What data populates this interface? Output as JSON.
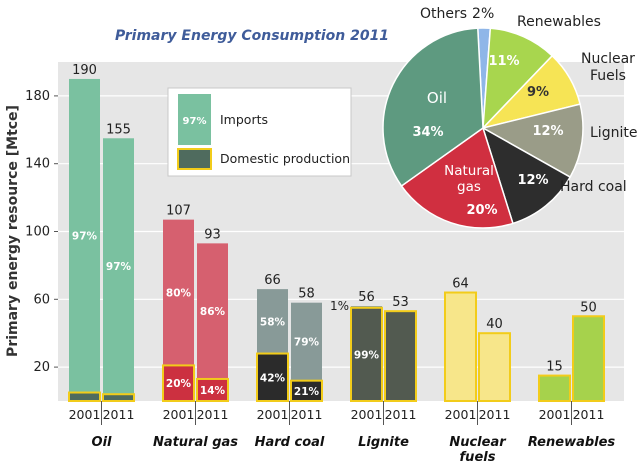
{
  "title": "Primary Energy Consumption 2011",
  "colors": {
    "title": "#3f5c9a",
    "plot_bg": "#e6e6e6",
    "grid": "#ffffff",
    "highlight_stroke": "#f2cc1a"
  },
  "chart_data": [
    {
      "type": "bar",
      "ylabel": "Primary energy resource [Mtce]",
      "ylim": [
        0,
        200
      ],
      "yticks": [
        20,
        60,
        100,
        140,
        180
      ],
      "grid": true,
      "legend_position": "top-center",
      "legend": [
        {
          "label": "Imports",
          "sample_label": "97%",
          "color": "#7ac1a0"
        },
        {
          "label": "Domestic production",
          "color": "#4f6b5e"
        }
      ],
      "groups": [
        {
          "name": "Oil",
          "import_color": "#7ac1a0",
          "domestic_color": "#4f6b5e",
          "bars": [
            {
              "year": "2001",
              "total": 190,
              "total_label": "190",
              "domestic": 5,
              "import_label": "97%"
            },
            {
              "year": "2011",
              "total": 155,
              "total_label": "155",
              "domestic": 4,
              "import_label": "97%"
            }
          ]
        },
        {
          "name": "Natural gas",
          "import_color": "#d6606f",
          "domestic_color": "#cc3040",
          "bars": [
            {
              "year": "2001",
              "total": 107,
              "total_label": "107",
              "domestic": 21,
              "import_label": "80%",
              "domestic_label": "20%"
            },
            {
              "year": "2011",
              "total": 93,
              "total_label": "93",
              "domestic": 13,
              "import_label": "86%",
              "domestic_label": "14%"
            }
          ]
        },
        {
          "name": "Hard coal",
          "import_color": "#889a98",
          "domestic_color": "#2b2b2b",
          "bars": [
            {
              "year": "2001",
              "total": 66,
              "total_label": "66",
              "domestic": 28,
              "import_label": "58%",
              "domestic_label": "42%"
            },
            {
              "year": "2011",
              "total": 58,
              "total_label": "58",
              "domestic": 12,
              "import_label": "79%",
              "domestic_label": "21%"
            }
          ]
        },
        {
          "name": "Lignite",
          "import_color": "#889a98",
          "domestic_color": "#525a50",
          "bars": [
            {
              "year": "2001",
              "total": 56,
              "total_label": "56",
              "domestic": 55,
              "domestic_label": "99%",
              "side_label": "1%"
            },
            {
              "year": "2011",
              "total": 53,
              "total_label": "53",
              "domestic": 53
            }
          ]
        },
        {
          "name": "Nuclear fuels",
          "import_color": "#f7e68a",
          "domestic_color": "#f7e68a",
          "bars": [
            {
              "year": "2001",
              "total": 64,
              "total_label": "64",
              "domestic": 64
            },
            {
              "year": "2011",
              "total": 40,
              "total_label": "40",
              "domestic": 40
            }
          ]
        },
        {
          "name": "Renewables",
          "import_color": "#a6d24c",
          "domestic_color": "#a6d24c",
          "bars": [
            {
              "year": "2001",
              "total": 15,
              "total_label": "15",
              "domestic": 15
            },
            {
              "year": "2011",
              "total": 50,
              "total_label": "50",
              "domestic": 50
            }
          ]
        }
      ]
    },
    {
      "type": "pie",
      "slices": [
        {
          "label": "Oil",
          "value": 34,
          "value_label": "34%",
          "color": "#5e9a80"
        },
        {
          "label": "Natural gas",
          "value": 20,
          "value_label": "20%",
          "color": "#d02f40"
        },
        {
          "label": "Hard coal",
          "value": 12,
          "value_label": "12%",
          "color": "#2d2d2d"
        },
        {
          "label": "Lignite",
          "value": 12,
          "value_label": "12%",
          "color": "#9a9c88"
        },
        {
          "label": "Nuclear Fuels",
          "value": 9,
          "value_label": "9%",
          "color": "#f6e455"
        },
        {
          "label": "Renewables",
          "value": 11,
          "value_label": "11%",
          "color": "#a8d64e"
        },
        {
          "label": "Others",
          "value": 2,
          "value_label": "2%",
          "color": "#8fb6e8"
        }
      ]
    }
  ]
}
